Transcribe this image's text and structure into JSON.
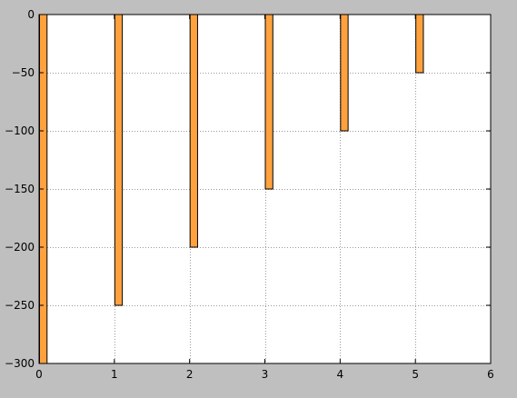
{
  "chart_data": {
    "type": "bar",
    "x": [
      0,
      1,
      2,
      3,
      4,
      5
    ],
    "values": [
      -300,
      -250,
      -200,
      -150,
      -100,
      -50
    ],
    "bar_width": 0.1,
    "bar_align": "left",
    "xlim": [
      0,
      6
    ],
    "ylim": [
      -300,
      0
    ],
    "xticks": [
      0,
      1,
      2,
      3,
      4,
      5,
      6
    ],
    "xtick_labels": [
      "0",
      "1",
      "2",
      "3",
      "4",
      "5",
      "6"
    ],
    "yticks": [
      0,
      -50,
      -100,
      -150,
      -200,
      -250,
      -300
    ],
    "ytick_labels": [
      "0",
      "−50",
      "−100",
      "−150",
      "−200",
      "−250",
      "−300"
    ],
    "grid": true,
    "title": "",
    "xlabel": "",
    "ylabel": "",
    "colors": {
      "figure_bg": "#bfbfbf",
      "axes_bg": "#ffffff",
      "bar_fill": "#ffa23e",
      "bar_edge": "#000000",
      "grid": "#9a9a9a",
      "text": "#000000"
    }
  }
}
